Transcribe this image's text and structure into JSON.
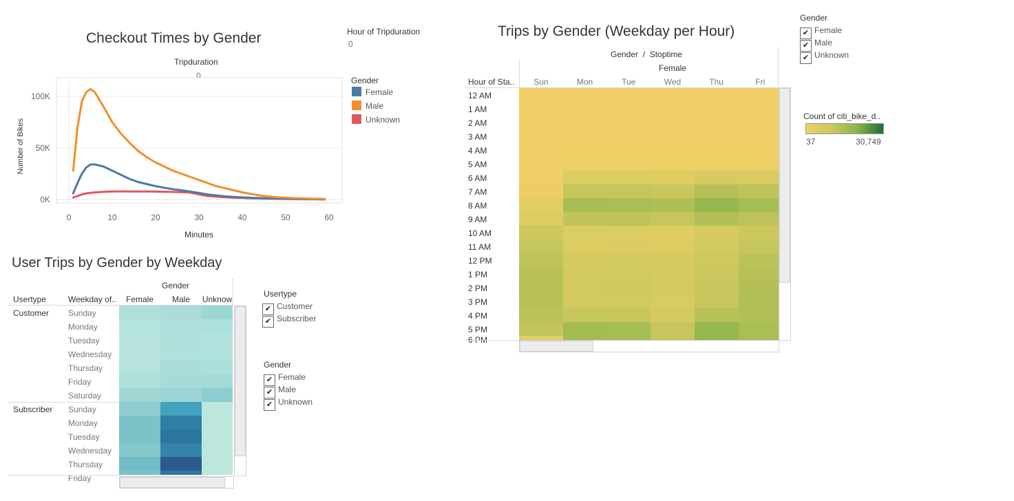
{
  "checkout": {
    "title": "Checkout Times by Gender",
    "column_header": "Tripduration",
    "column_value": "0",
    "filter_title": "Hour of Tripduration",
    "filter_value": "0",
    "legend_title": "Gender",
    "legend": [
      {
        "label": "Female",
        "color": "#4e79a7"
      },
      {
        "label": "Male",
        "color": "#f28e2b"
      },
      {
        "label": "Unknown",
        "color": "#e15759"
      }
    ]
  },
  "chart_data": {
    "type": "line",
    "title": "Checkout Times by Gender",
    "xlabel": "Minutes",
    "ylabel": "Number of Bikes",
    "xlim": [
      0,
      60
    ],
    "ylim": [
      0,
      120000
    ],
    "x_ticks": [
      "0",
      "10",
      "20",
      "30",
      "40",
      "50",
      "60"
    ],
    "y_ticks": [
      "0K",
      "50K",
      "100K"
    ],
    "x": [
      1,
      2,
      3,
      4,
      5,
      6,
      7,
      8,
      10,
      12,
      14,
      16,
      18,
      20,
      22,
      24,
      26,
      28,
      30,
      32,
      34,
      36,
      38,
      40,
      42,
      44,
      46,
      48,
      50,
      52,
      54,
      56,
      58,
      59
    ],
    "series": [
      {
        "name": "Female",
        "color": "#4e79a7",
        "values": [
          6000,
          16000,
          25000,
          31000,
          34000,
          34000,
          33000,
          32000,
          28000,
          24000,
          20000,
          17000,
          15000,
          13000,
          11500,
          10000,
          9000,
          7800,
          6500,
          5000,
          4000,
          3200,
          2600,
          2100,
          1700,
          1400,
          1200,
          1000,
          800,
          600,
          500,
          400,
          300,
          300
        ]
      },
      {
        "name": "Male",
        "color": "#f28e2b",
        "values": [
          28000,
          70000,
          95000,
          104000,
          107000,
          104000,
          97000,
          90000,
          75000,
          64000,
          55000,
          47000,
          41000,
          36000,
          32000,
          28000,
          25000,
          22000,
          19000,
          16000,
          13000,
          11000,
          9000,
          7000,
          5500,
          4000,
          3000,
          2300,
          1800,
          1400,
          1100,
          900,
          700,
          600
        ]
      },
      {
        "name": "Unknown",
        "color": "#e15759",
        "values": [
          2000,
          3500,
          5000,
          6000,
          6500,
          7000,
          7200,
          7500,
          7800,
          8000,
          7900,
          7800,
          7800,
          7700,
          7600,
          7400,
          7200,
          6800,
          5000,
          3500,
          2800,
          2300,
          1900,
          1600,
          1300,
          1100,
          900,
          700,
          600,
          500,
          400,
          350,
          300,
          300
        ]
      }
    ]
  },
  "user_trips": {
    "title": "User Trips by Gender by Weekday",
    "col_group_header": "Gender",
    "row_headers": [
      "Usertype",
      "Weekday of.."
    ],
    "columns": [
      "Female",
      "Male",
      "Unknow"
    ],
    "groups": [
      {
        "label": "Customer",
        "rows": [
          "Sunday",
          "Monday",
          "Tuesday",
          "Wednesday",
          "Thursday",
          "Friday",
          "Saturday"
        ],
        "colors": [
          [
            "#b0e0db",
            "#abdcd9",
            "#9cd6d5"
          ],
          [
            "#b5e4dd",
            "#aedfdb",
            "#ace0dc"
          ],
          [
            "#b7e5de",
            "#b0e0dc",
            "#b1e2dd"
          ],
          [
            "#b7e5de",
            "#b1e1dd",
            "#b1e2dd"
          ],
          [
            "#b4e3dd",
            "#a8dcda",
            "#aadfdb"
          ],
          [
            "#aee1dc",
            "#a6dbd9",
            "#a3dbd8"
          ],
          [
            "#9fd7d4",
            "#9dd5d4",
            "#8ccdcf"
          ]
        ]
      },
      {
        "label": "Subscriber",
        "rows": [
          "Sunday",
          "Monday",
          "Tuesday",
          "Wednesday",
          "Thursday",
          "Friday"
        ],
        "colors": [
          [
            "#8ecccf",
            "#43a2bd",
            "#bde6dc"
          ],
          [
            "#7cc2c9",
            "#2f7fa7",
            "#bde6dc"
          ],
          [
            "#7cc2c9",
            "#2e76a2",
            "#bde6dc"
          ],
          [
            "#84c7cc",
            "#3484ac",
            "#bde6dc"
          ],
          [
            "#72bcc6",
            "#2a5a8e",
            "#bde6dc"
          ],
          [
            "#7cc2c9",
            "#2e76a2",
            "#bde6dc"
          ]
        ]
      }
    ],
    "usertype_filter": {
      "title": "Usertype",
      "items": [
        "Customer",
        "Subscriber"
      ]
    },
    "gender_filter": {
      "title": "Gender",
      "items": [
        "Female",
        "Male",
        "Unknown"
      ]
    }
  },
  "weekday_hour": {
    "title": "Trips by Gender (Weekday per Hour)",
    "header_line1": "Gender  /  Stoptime",
    "header_line2": "Female",
    "row_header": "Hour of Sta..",
    "columns": [
      "Sun",
      "Mon",
      "Tue",
      "Wed",
      "Thu",
      "Fri"
    ],
    "rows": [
      "12 AM",
      "1 AM",
      "2 AM",
      "3 AM",
      "4 AM",
      "5 AM",
      "6 AM",
      "7 AM",
      "8 AM",
      "9 AM",
      "10 AM",
      "11 AM",
      "12 PM",
      "1 PM",
      "2 PM",
      "3 PM",
      "4 PM",
      "5 PM"
    ],
    "partial_row_label": "6 PM",
    "colors": [
      [
        "#f0d066",
        "#f0d066",
        "#f0d066",
        "#f0d066",
        "#f0d066",
        "#f0d066"
      ],
      [
        "#f0d066",
        "#f0d066",
        "#f0d066",
        "#f0d066",
        "#f0d066",
        "#f0d066"
      ],
      [
        "#f0d066",
        "#f0d066",
        "#f0d066",
        "#f0d066",
        "#f0d066",
        "#f0d066"
      ],
      [
        "#f0d066",
        "#f0d066",
        "#f0d066",
        "#f0d066",
        "#f0d066",
        "#f0d066"
      ],
      [
        "#f0d066",
        "#f0d066",
        "#f0d066",
        "#f0d066",
        "#f0d066",
        "#f0d066"
      ],
      [
        "#f0d066",
        "#ecd064",
        "#ecd064",
        "#ecd064",
        "#ecd064",
        "#ecd064"
      ],
      [
        "#f0d066",
        "#dccd62",
        "#dccd62",
        "#dfcd62",
        "#d6ca60",
        "#d8cb61"
      ],
      [
        "#eece64",
        "#c5c65c",
        "#c4c55c",
        "#c8c75d",
        "#b5c057",
        "#bec35a"
      ],
      [
        "#e3ce63",
        "#a8bd53",
        "#a9be54",
        "#aebf55",
        "#97b84f",
        "#a6bd53"
      ],
      [
        "#dccd62",
        "#c1c45b",
        "#bec35a",
        "#c6c65c",
        "#b4c057",
        "#bdc35a"
      ],
      [
        "#cdc95f",
        "#dccd62",
        "#dccd62",
        "#dfcd62",
        "#d6ca60",
        "#ccc85e"
      ],
      [
        "#c5c65c",
        "#dccd62",
        "#dacc62",
        "#dccd62",
        "#d3ca60",
        "#c5c65c"
      ],
      [
        "#bfc35a",
        "#d6ca60",
        "#d3ca60",
        "#d6ca60",
        "#cdc95f",
        "#bcc25a"
      ],
      [
        "#b8c158",
        "#d3ca60",
        "#d1ca5f",
        "#d6ca60",
        "#cac85e",
        "#b8c158"
      ],
      [
        "#b6c057",
        "#d1ca5f",
        "#cfc95f",
        "#d3ca60",
        "#c5c65c",
        "#b4c057"
      ],
      [
        "#b8c158",
        "#d3ca60",
        "#d1ca5f",
        "#d8cb61",
        "#c7c65d",
        "#b2c056"
      ],
      [
        "#bcc25a",
        "#c6c65c",
        "#c6c65c",
        "#d3ca60",
        "#b8c158",
        "#b4c057"
      ],
      [
        "#c2c55b",
        "#a3bc52",
        "#a6bd53",
        "#c6c65c",
        "#95b74e",
        "#a9be54"
      ]
    ],
    "gender_filter": {
      "title": "Gender",
      "items": [
        "Female",
        "Male",
        "Unknown"
      ]
    },
    "color_legend": {
      "title": "Count of citi_bike_d..",
      "min_label": "37",
      "max_label": "30,749",
      "min_color": "#f0d066",
      "max_color": "#1e6e38"
    }
  }
}
